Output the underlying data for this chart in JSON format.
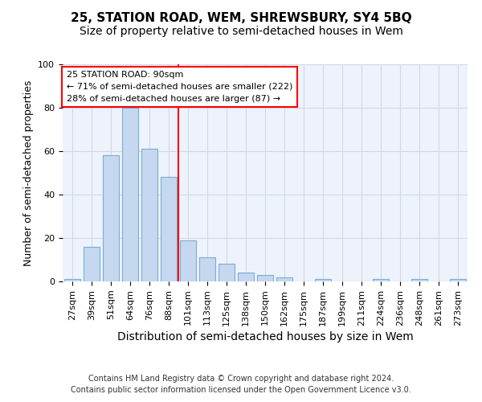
{
  "title": "25, STATION ROAD, WEM, SHREWSBURY, SY4 5BQ",
  "subtitle": "Size of property relative to semi-detached houses in Wem",
  "xlabel": "Distribution of semi-detached houses by size in Wem",
  "ylabel": "Number of semi-detached properties",
  "categories": [
    "27sqm",
    "39sqm",
    "51sqm",
    "64sqm",
    "76sqm",
    "88sqm",
    "101sqm",
    "113sqm",
    "125sqm",
    "138sqm",
    "150sqm",
    "162sqm",
    "175sqm",
    "187sqm",
    "199sqm",
    "211sqm",
    "224sqm",
    "236sqm",
    "248sqm",
    "261sqm",
    "273sqm"
  ],
  "values": [
    1,
    16,
    58,
    80,
    61,
    48,
    19,
    11,
    8,
    4,
    3,
    2,
    0,
    1,
    0,
    0,
    1,
    0,
    1,
    0,
    1
  ],
  "bar_color": "#c5d8f0",
  "bar_edge_color": "#7aadd4",
  "grid_color": "#d0d8e8",
  "bg_color": "#eef2fb",
  "annotation_line1": "25 STATION ROAD: 90sqm",
  "annotation_line2": "← 71% of semi-detached houses are smaller (222)",
  "annotation_line3": "28% of semi-detached houses are larger (87) →",
  "footer1": "Contains HM Land Registry data © Crown copyright and database right 2024.",
  "footer2": "Contains public sector information licensed under the Open Government Licence v3.0.",
  "ylim": [
    0,
    100
  ],
  "red_line_x": 5.5,
  "title_fontsize": 11,
  "subtitle_fontsize": 10,
  "xlabel_fontsize": 10,
  "ylabel_fontsize": 9,
  "tick_fontsize": 8,
  "annotation_fontsize": 8,
  "footer_fontsize": 7
}
